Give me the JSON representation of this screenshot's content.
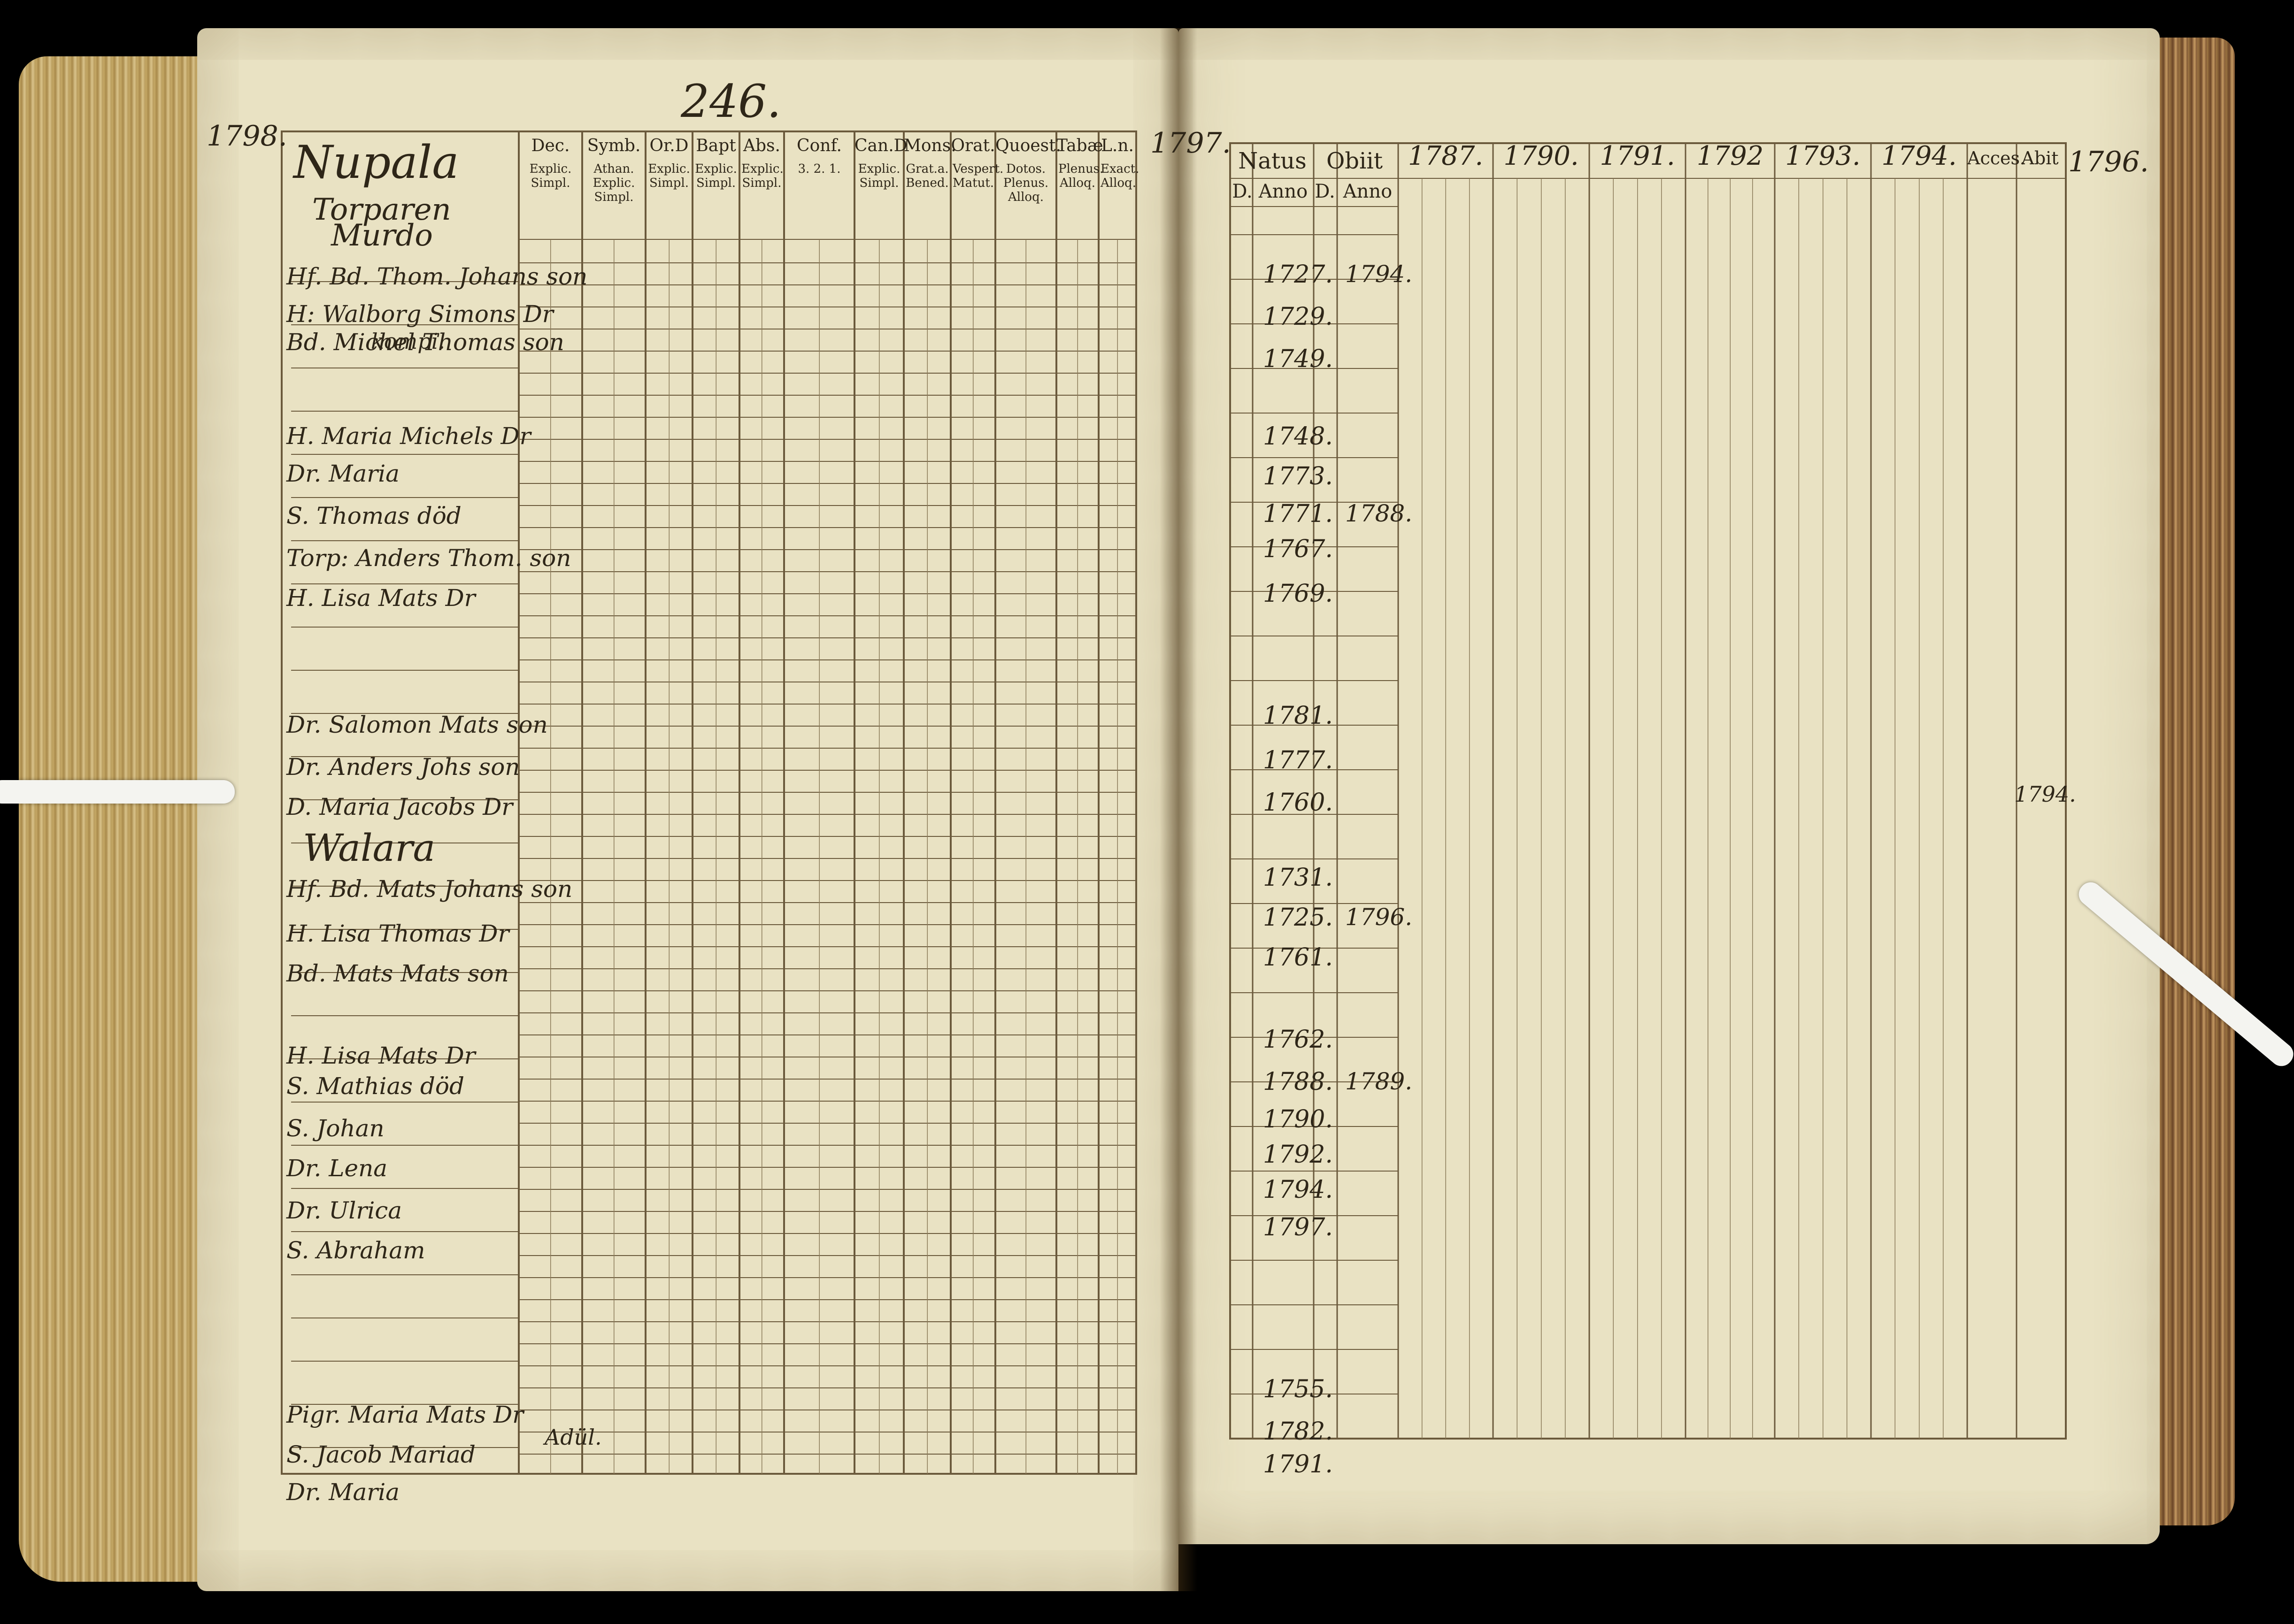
{
  "left_page": {
    "page_number": "246.",
    "year_label": "1798.",
    "village_title": "Nupala",
    "village_subtitle_1": "Torparen",
    "village_subtitle_2": "Murdo",
    "second_village": "Walara",
    "column_headers": [
      "Dec.",
      "Symb.",
      "Or.D",
      "Bapt",
      "Abs.",
      "Conf.",
      "Can.D",
      "Mons.",
      "Orat.",
      "Quoest.",
      "Tabæ",
      "L.n."
    ],
    "column_subheaders": [
      "Explic. Simpl.",
      "Athan. Explic. Simpl.",
      "Explic. Simpl.",
      "Explic. Simpl.",
      "Explic. Simpl.",
      "3. 2. 1.",
      "Explic. Simpl.",
      "Grat.a. Bened.",
      "Vespert. Matut.",
      "Dotos. Plenus. Alloq.",
      "Plenus. Alloq.",
      "Exact. Alloq."
    ],
    "names": [
      "Hf. Bd. Thom. Johans son",
      "H: Walborg Simons Dr",
      "Bd. Michel Thomas son",
      "H. Maria Michels Dr",
      "Dr. Maria",
      "S. Thomas död",
      "Torp: Anders Thom. son",
      "H. Lisa Mats Dr",
      "Dr. Salomon Mats son",
      "Dr. Anders Johs son",
      "D. Maria Jacobs Dr",
      "Hf. Bd. Mats Johans son",
      "H. Lisa Thomas Dr",
      "Bd. Mats Mats son",
      "H. Lisa Mats Dr",
      "S. Mathias död",
      "S. Johan",
      "Dr. Lena",
      "Dr. Ulrica",
      "S. Abraham",
      "Pigr. Maria Mats Dr",
      "S. Jacob Mariad",
      "Dr. Maria"
    ],
    "annotation_1": "kompi.",
    "annotation_2": "Adül."
  },
  "right_page": {
    "year_label_left": "1797.",
    "year_label_right": "1796.",
    "col_natus": "Natus",
    "col_obiit": "Obiit",
    "col_d": "D.",
    "col_anno": "Anno",
    "years": [
      "1787.",
      "1790.",
      "1791.",
      "1792",
      "1793.",
      "1794."
    ],
    "col_accessit": "Acces.",
    "col_abiit": "Abit",
    "birth_years": [
      "1727.",
      "1729.",
      "1749.",
      "1748.",
      "1773.",
      "1771.",
      "1767.",
      "1769.",
      "1781.",
      "1777.",
      "1760.",
      "1731.",
      "1725.",
      "1761.",
      "1762.",
      "1788.",
      "1790.",
      "1792.",
      "1794.",
      "1797.",
      "1755.",
      "1782.",
      "1791."
    ],
    "death_years": [
      "1794.",
      "1788.",
      "1796.",
      "1789."
    ],
    "abit_note": "1794."
  },
  "colors": {
    "paper": "#e9e2c3",
    "ink": "#2e2618",
    "rule": "#6b5a3c",
    "background": "#000000",
    "page_edge": "#b99a55"
  }
}
